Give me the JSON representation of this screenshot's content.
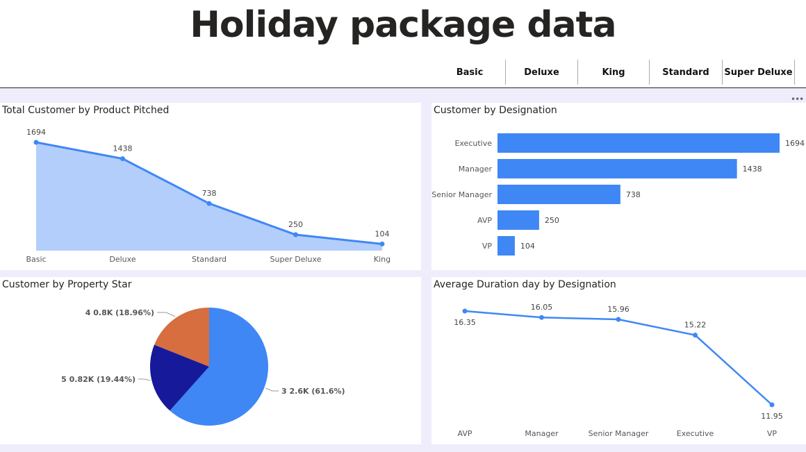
{
  "page": {
    "title": "Holiday package data"
  },
  "slicer": {
    "items": [
      "Basic",
      "Deluxe",
      "King",
      "Standard",
      "Super Deluxe"
    ]
  },
  "icons": {
    "more": "more-options-icon"
  },
  "chart_data": [
    {
      "id": "product",
      "type": "area",
      "title": "Total Customer by Product Pitched",
      "categories": [
        "Basic",
        "Deluxe",
        "Standard",
        "Super Deluxe",
        "King"
      ],
      "values": [
        1694,
        1438,
        738,
        250,
        104
      ],
      "ylim": [
        0,
        1694
      ],
      "color": "#3f87f5",
      "fill": "#b3cefa",
      "grid": false
    },
    {
      "id": "designation",
      "type": "bar",
      "orientation": "horizontal",
      "title": "Customer by Designation",
      "categories": [
        "Executive",
        "Manager",
        "Senior Manager",
        "AVP",
        "VP"
      ],
      "values": [
        1694,
        1438,
        738,
        250,
        104
      ],
      "xlim": [
        0,
        1694
      ],
      "color": "#3f87f5",
      "grid": false
    },
    {
      "id": "star",
      "type": "pie",
      "title": "Customer by Property Star",
      "slices": [
        {
          "label": "3",
          "value": 61.6,
          "display": "3 2.6K (61.6%)",
          "color": "#3f87f5"
        },
        {
          "label": "5",
          "value": 19.44,
          "display": "5 0.82K (19.44%)",
          "color": "#16199a"
        },
        {
          "label": "4",
          "value": 18.96,
          "display": "4 0.8K (18.96%)",
          "color": "#d66e40"
        }
      ]
    },
    {
      "id": "duration",
      "type": "line",
      "title": "Average Duration day by Designation",
      "categories": [
        "AVP",
        "Manager",
        "Senior Manager",
        "Executive",
        "VP"
      ],
      "values": [
        16.35,
        16.05,
        15.96,
        15.22,
        11.95
      ],
      "labels": [
        "16.35",
        "16.05",
        "15.96",
        "15.22",
        "11.95"
      ],
      "ylim": [
        11.95,
        16.35
      ],
      "color": "#3f87f5",
      "grid": false
    }
  ]
}
